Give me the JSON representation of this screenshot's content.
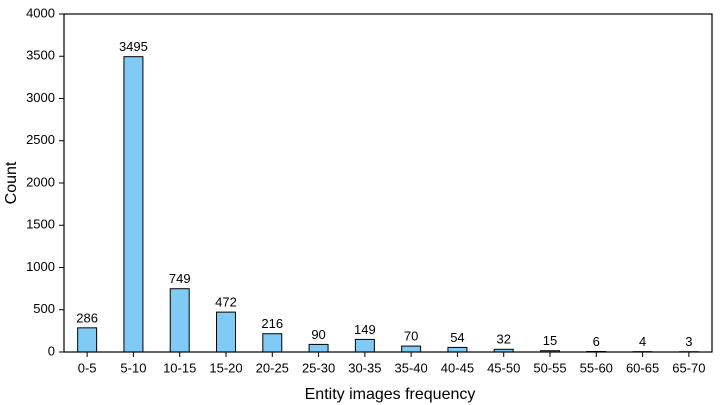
{
  "chart_data": {
    "type": "bar",
    "x_label": "Entity images frequency",
    "y_label": "Count",
    "categories": [
      "0-5",
      "5-10",
      "10-15",
      "15-20",
      "20-25",
      "25-30",
      "30-35",
      "35-40",
      "40-45",
      "45-50",
      "50-55",
      "55-60",
      "60-65",
      "65-70"
    ],
    "values": [
      286,
      3495,
      749,
      472,
      216,
      90,
      149,
      70,
      54,
      32,
      15,
      6,
      4,
      3
    ],
    "color": "#80cbf5",
    "ylim": [
      0,
      4000
    ],
    "yticks": [
      0,
      500,
      1000,
      1500,
      2000,
      2500,
      3000,
      3500,
      4000
    ],
    "grid": false
  }
}
